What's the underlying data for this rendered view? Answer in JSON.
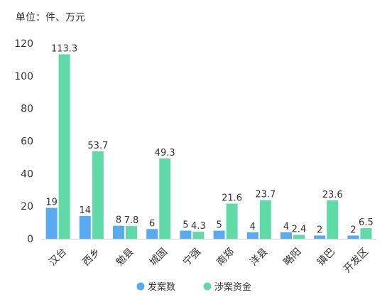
{
  "unit_label": "单位：件、万元",
  "colors": {
    "case_count": "#5aaaf0",
    "funds": "#5fdaa8"
  },
  "chart_data": {
    "type": "bar",
    "categories": [
      "汉台",
      "西乡",
      "勉县",
      "城固",
      "宁强",
      "南郑",
      "洋县",
      "略阳",
      "镇巴",
      "开发区"
    ],
    "series": [
      {
        "name": "发案数",
        "values": [
          19,
          14,
          8,
          6,
          5,
          5,
          4,
          4,
          2,
          2
        ]
      },
      {
        "name": "涉案资金",
        "values": [
          113.3,
          53.7,
          7.8,
          49.3,
          4.3,
          21.6,
          23.7,
          2.4,
          23.6,
          6.5
        ]
      }
    ],
    "yticks": [
      0,
      20,
      40,
      60,
      80,
      100,
      120
    ],
    "ylim": [
      0,
      120
    ],
    "legend_position": "bottom"
  }
}
